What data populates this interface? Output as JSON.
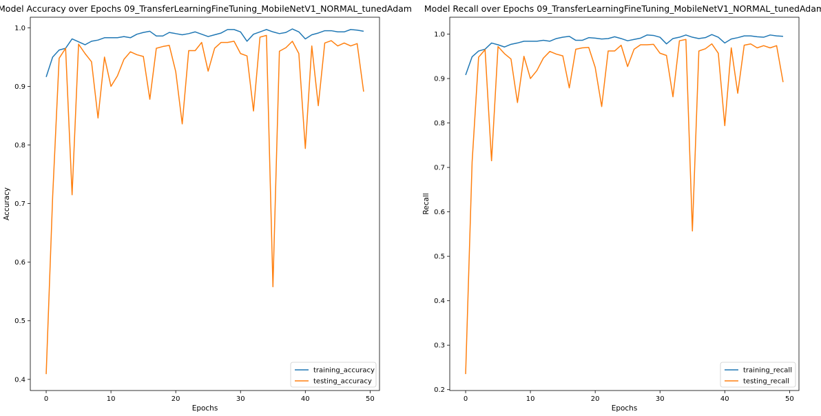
{
  "colors": {
    "training": "#1f77b4",
    "testing": "#ff7f0e",
    "axes": "#000000",
    "legend_border": "#cccccc"
  },
  "chart_data": [
    {
      "type": "line",
      "title": "Model Accuracy over Epochs 09_TransferLearningFineTuning_MobileNetV1_NORMAL_tunedAdam",
      "xlabel": "Epochs",
      "ylabel": "Accuracy",
      "xlim": [
        -2.45,
        51.45
      ],
      "ylim": [
        0.381,
        1.018
      ],
      "xticks": [
        0,
        10,
        20,
        30,
        40,
        50
      ],
      "yticks": [
        0.4,
        0.5,
        0.6,
        0.7,
        0.8,
        0.9,
        1.0
      ],
      "ytick_labels": [
        "0.4",
        "0.5",
        "0.6",
        "0.7",
        "0.8",
        "0.9",
        "1.0"
      ],
      "legend_position": "lower-right",
      "series": [
        {
          "name": "training_accuracy",
          "color": "#1f77b4",
          "values": [
            0.916,
            0.95,
            0.962,
            0.965,
            0.981,
            0.976,
            0.971,
            0.977,
            0.979,
            0.983,
            0.983,
            0.983,
            0.985,
            0.983,
            0.989,
            0.992,
            0.994,
            0.986,
            0.986,
            0.992,
            0.99,
            0.988,
            0.99,
            0.993,
            0.989,
            0.985,
            0.988,
            0.991,
            0.997,
            0.997,
            0.993,
            0.977,
            0.989,
            0.993,
            0.997,
            0.993,
            0.99,
            0.992,
            0.998,
            0.993,
            0.981,
            0.988,
            0.991,
            0.995,
            0.995,
            0.993,
            0.993,
            0.997,
            0.996,
            0.994
          ]
        },
        {
          "name": "testing_accuracy",
          "color": "#ff7f0e",
          "values": [
            0.409,
            0.712,
            0.948,
            0.965,
            0.715,
            0.972,
            0.956,
            0.942,
            0.846,
            0.95,
            0.9,
            0.918,
            0.946,
            0.959,
            0.954,
            0.951,
            0.878,
            0.965,
            0.968,
            0.97,
            0.925,
            0.836,
            0.961,
            0.961,
            0.975,
            0.926,
            0.965,
            0.975,
            0.975,
            0.977,
            0.956,
            0.952,
            0.858,
            0.984,
            0.987,
            0.558,
            0.96,
            0.966,
            0.977,
            0.956,
            0.794,
            0.969,
            0.867,
            0.974,
            0.978,
            0.969,
            0.974,
            0.969,
            0.973,
            0.891
          ]
        }
      ]
    },
    {
      "type": "line",
      "title": "Model Recall over Epochs 09_TransferLearningFineTuning_MobileNetV1_NORMAL_tunedAdam",
      "xlabel": "Epochs",
      "ylabel": "Recall",
      "xlim": [
        -2.45,
        51.45
      ],
      "ylim": [
        0.198,
        1.038
      ],
      "xticks": [
        0,
        10,
        20,
        30,
        40,
        50
      ],
      "yticks": [
        0.2,
        0.3,
        0.4,
        0.5,
        0.6,
        0.7,
        0.8,
        0.9,
        1.0
      ],
      "ytick_labels": [
        "0.2",
        "0.3",
        "0.4",
        "0.5",
        "0.6",
        "0.7",
        "0.8",
        "0.9",
        "1.0"
      ],
      "legend_position": "lower-right",
      "series": [
        {
          "name": "training_recall",
          "color": "#1f77b4",
          "values": [
            0.908,
            0.949,
            0.962,
            0.966,
            0.98,
            0.976,
            0.971,
            0.977,
            0.98,
            0.984,
            0.984,
            0.984,
            0.986,
            0.984,
            0.99,
            0.993,
            0.995,
            0.986,
            0.986,
            0.992,
            0.991,
            0.989,
            0.99,
            0.994,
            0.99,
            0.985,
            0.988,
            0.991,
            0.998,
            0.997,
            0.993,
            0.978,
            0.99,
            0.993,
            0.998,
            0.993,
            0.99,
            0.992,
            0.999,
            0.993,
            0.98,
            0.989,
            0.992,
            0.996,
            0.996,
            0.994,
            0.993,
            0.998,
            0.996,
            0.995
          ]
        },
        {
          "name": "testing_recall",
          "color": "#ff7f0e",
          "values": [
            0.235,
            0.712,
            0.948,
            0.965,
            0.715,
            0.972,
            0.956,
            0.944,
            0.846,
            0.95,
            0.9,
            0.918,
            0.946,
            0.961,
            0.955,
            0.951,
            0.879,
            0.966,
            0.969,
            0.97,
            0.925,
            0.837,
            0.962,
            0.962,
            0.975,
            0.927,
            0.966,
            0.976,
            0.976,
            0.977,
            0.957,
            0.952,
            0.859,
            0.985,
            0.988,
            0.557,
            0.962,
            0.967,
            0.978,
            0.957,
            0.794,
            0.969,
            0.867,
            0.975,
            0.978,
            0.969,
            0.974,
            0.969,
            0.974,
            0.892
          ]
        }
      ]
    }
  ]
}
